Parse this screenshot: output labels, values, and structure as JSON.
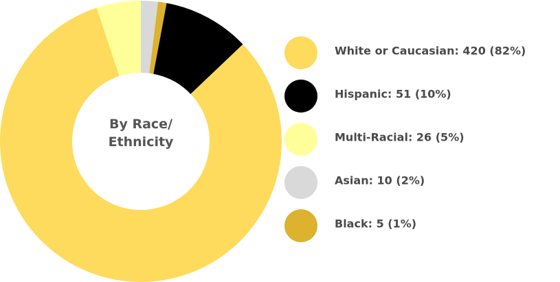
{
  "chart_data": {
    "type": "donut",
    "title": "By Race/ Ethnicity",
    "categories": [
      "White or Caucasian: 420 (82%)",
      "Hispanic: 51 (10%)",
      "Multi-Racial: 26 (5%)",
      "Asian: 10 (2%)",
      "Black: 5 (1%)"
    ],
    "values": [
      420,
      51,
      26,
      10,
      5
    ],
    "colors": [
      "#fedb5c",
      "#000000",
      "#ffff99",
      "#d9d9d9",
      "#dcb22e"
    ],
    "legend": "right"
  }
}
